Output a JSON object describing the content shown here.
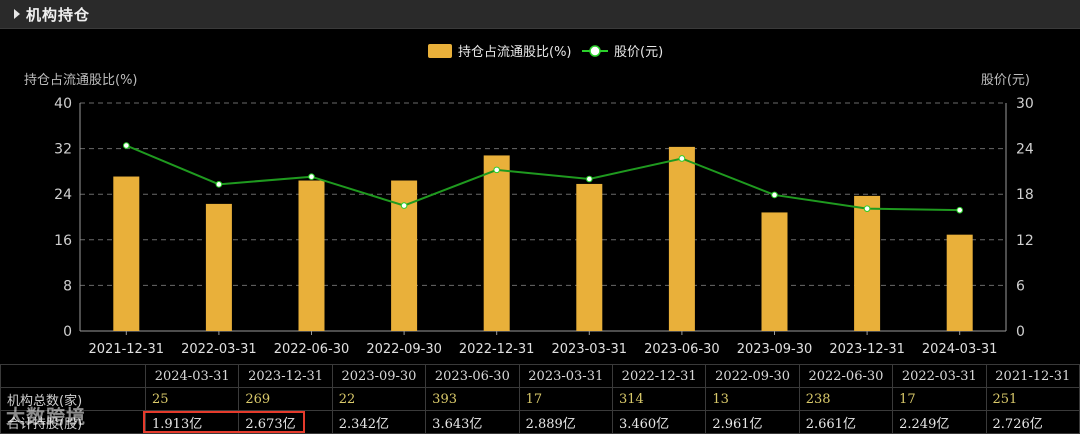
{
  "header": {
    "title": "机构持仓"
  },
  "chart_data": {
    "type": "bar",
    "categories": [
      "2021-12-31",
      "2022-03-31",
      "2022-06-30",
      "2022-09-30",
      "2022-12-31",
      "2023-03-31",
      "2023-06-30",
      "2023-09-30",
      "2023-12-31",
      "2024-03-31"
    ],
    "series": [
      {
        "name": "持仓占流通股比(%)",
        "type": "bar",
        "axis": "left",
        "color": "#e9b03a",
        "values": [
          27.1,
          22.3,
          26.4,
          26.4,
          30.8,
          25.8,
          32.3,
          20.8,
          23.7,
          16.9
        ]
      },
      {
        "name": "股价(元)",
        "type": "line",
        "axis": "right",
        "color": "#2bd02b",
        "values": [
          24.4,
          19.3,
          20.3,
          16.5,
          21.2,
          20.0,
          22.7,
          17.9,
          16.1,
          15.9
        ]
      }
    ],
    "ylabel_left": "持仓占流通股比(%)",
    "ylabel_right": "股价(元)",
    "ylim_left": [
      0,
      40
    ],
    "ylim_right": [
      0,
      30
    ],
    "yticks_left": [
      "0",
      "8",
      "16",
      "24",
      "32",
      "40"
    ],
    "yticks_right": [
      "0",
      "6",
      "12",
      "18",
      "24",
      "30"
    ],
    "grid": true,
    "legend": "top-center"
  },
  "table": {
    "dates": [
      "2024-03-31",
      "2023-12-31",
      "2023-09-30",
      "2023-06-30",
      "2023-03-31",
      "2022-12-31",
      "2022-09-30",
      "2022-06-30",
      "2022-03-31",
      "2021-12-31"
    ],
    "row1_label": "机构总数(家)",
    "row1_values": [
      "25",
      "269",
      "22",
      "393",
      "17",
      "314",
      "13",
      "238",
      "17",
      "251"
    ],
    "row2_label": "合计持股(股)",
    "row2_values": [
      "1.913亿",
      "2.673亿",
      "2.342亿",
      "3.643亿",
      "2.889亿",
      "3.460亿",
      "2.961亿",
      "2.661亿",
      "2.249亿",
      "2.726亿"
    ]
  },
  "watermark": "大数跨境",
  "colors": {
    "bar": "#e9b03a",
    "line": "#2bd02b",
    "highlight": "#e53b2c"
  }
}
